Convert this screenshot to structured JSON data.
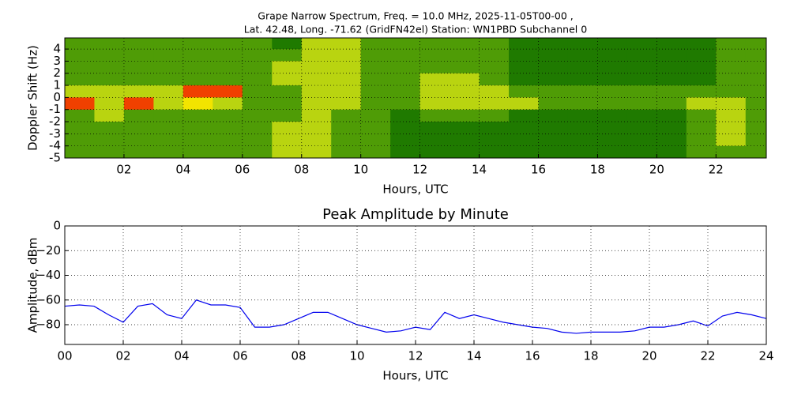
{
  "chart_data": [
    {
      "type": "heatmap",
      "title": [
        "Grape Narrow Spectrum, Freq. = 10.0 MHz, 2025-11-05T00-00 ,",
        "Lat.  42.48, Long. -71.62 (GridFN42el) Station: WN1PBD Subchannel 0"
      ],
      "xlabel": "Hours, UTC",
      "ylabel": "Doppler Shift (Hz)",
      "xlim": [
        0,
        23.7
      ],
      "ylim": [
        -5,
        4.92
      ],
      "xticks": [
        {
          "value": 2,
          "label": "02"
        },
        {
          "value": 4,
          "label": "04"
        },
        {
          "value": 6,
          "label": "06"
        },
        {
          "value": 8,
          "label": "08"
        },
        {
          "value": 10,
          "label": "10"
        },
        {
          "value": 12,
          "label": "12"
        },
        {
          "value": 14,
          "label": "14"
        },
        {
          "value": 16,
          "label": "16"
        },
        {
          "value": 18,
          "label": "18"
        },
        {
          "value": 20,
          "label": "20"
        },
        {
          "value": 22,
          "label": "22"
        }
      ],
      "yticks": [
        4,
        3,
        2,
        1,
        0,
        -1,
        -2,
        -3,
        -4,
        -5
      ],
      "grid": true,
      "colors": [
        "#1f7a00",
        "#4f9c06",
        "#b9d410",
        "#f2e400",
        "#f04000"
      ],
      "x": [
        0.5,
        1.5,
        2.5,
        3.5,
        4.5,
        5.5,
        6.5,
        7.5,
        8.5,
        9.5,
        10.5,
        11.5,
        12.5,
        13.5,
        14.5,
        15.5,
        16.5,
        17.5,
        18.5,
        19.5,
        20.5,
        21.5,
        22.5,
        23.5
      ],
      "y": [
        4.5,
        3.5,
        2.5,
        1.5,
        0.5,
        -0.5,
        -1.5,
        -2.5,
        -3.5,
        -4.5
      ],
      "z": [
        [
          1,
          1,
          1,
          1,
          1,
          1,
          1,
          0,
          2,
          2,
          1,
          1,
          1,
          1,
          1,
          0,
          0,
          0,
          0,
          0,
          0,
          0,
          1,
          1
        ],
        [
          1,
          1,
          1,
          1,
          1,
          1,
          1,
          1,
          2,
          2,
          1,
          1,
          1,
          1,
          1,
          0,
          0,
          0,
          0,
          0,
          0,
          0,
          1,
          1
        ],
        [
          1,
          1,
          1,
          1,
          1,
          1,
          1,
          2,
          2,
          2,
          1,
          1,
          1,
          1,
          1,
          0,
          0,
          0,
          0,
          0,
          0,
          0,
          1,
          1
        ],
        [
          1,
          1,
          1,
          1,
          1,
          1,
          1,
          2,
          2,
          2,
          1,
          1,
          2,
          2,
          1,
          0,
          0,
          0,
          0,
          0,
          0,
          0,
          1,
          1
        ],
        [
          2,
          2,
          2,
          2,
          4,
          4,
          1,
          1,
          2,
          2,
          1,
          1,
          2,
          2,
          2,
          1,
          1,
          1,
          1,
          1,
          1,
          1,
          1,
          1
        ],
        [
          4,
          2,
          4,
          2,
          3,
          2,
          1,
          1,
          2,
          2,
          1,
          1,
          2,
          2,
          2,
          2,
          1,
          1,
          1,
          1,
          1,
          2,
          2,
          1
        ],
        [
          1,
          2,
          1,
          1,
          1,
          1,
          1,
          1,
          2,
          1,
          1,
          0,
          1,
          1,
          1,
          0,
          0,
          0,
          0,
          0,
          0,
          1,
          2,
          1
        ],
        [
          1,
          1,
          1,
          1,
          1,
          1,
          1,
          2,
          2,
          1,
          1,
          0,
          0,
          0,
          0,
          0,
          0,
          0,
          0,
          0,
          0,
          1,
          2,
          1
        ],
        [
          1,
          1,
          1,
          1,
          1,
          1,
          1,
          2,
          2,
          1,
          1,
          0,
          0,
          0,
          0,
          0,
          0,
          0,
          0,
          0,
          0,
          1,
          2,
          1
        ],
        [
          1,
          1,
          1,
          1,
          1,
          1,
          1,
          2,
          2,
          1,
          1,
          0,
          0,
          0,
          0,
          0,
          0,
          0,
          0,
          0,
          0,
          1,
          1,
          1
        ]
      ]
    },
    {
      "type": "line",
      "title": "Peak Amplitude by Minute",
      "xlabel": "Hours, UTC",
      "ylabel": "Amplitude, dBm",
      "xlim": [
        0,
        24
      ],
      "ylim": [
        -96,
        0
      ],
      "xticks": [
        {
          "value": 0,
          "label": "00"
        },
        {
          "value": 2,
          "label": "02"
        },
        {
          "value": 4,
          "label": "04"
        },
        {
          "value": 6,
          "label": "06"
        },
        {
          "value": 8,
          "label": "08"
        },
        {
          "value": 10,
          "label": "10"
        },
        {
          "value": 12,
          "label": "12"
        },
        {
          "value": 14,
          "label": "14"
        },
        {
          "value": 16,
          "label": "16"
        },
        {
          "value": 18,
          "label": "18"
        },
        {
          "value": 20,
          "label": "20"
        },
        {
          "value": 22,
          "label": "22"
        },
        {
          "value": 24,
          "label": "24"
        }
      ],
      "yticks": [
        0,
        {
          "value": -20,
          "label": "−20"
        },
        {
          "value": -40,
          "label": "−40"
        },
        {
          "value": -60,
          "label": "−60"
        },
        {
          "value": -80,
          "label": "−80"
        }
      ],
      "grid": true,
      "x": [
        0,
        0.5,
        1,
        1.5,
        2,
        2.5,
        3,
        3.5,
        4,
        4.5,
        5,
        5.5,
        6,
        6.5,
        7,
        7.5,
        8,
        8.5,
        9,
        9.5,
        10,
        10.5,
        11,
        11.5,
        12,
        12.5,
        13,
        13.5,
        14,
        14.5,
        15,
        15.5,
        16,
        16.5,
        17,
        17.5,
        18,
        18.5,
        19,
        19.5,
        20,
        20.5,
        21,
        21.5,
        22,
        22.5,
        23,
        23.5,
        24
      ],
      "series": [
        {
          "color": "#0000ee",
          "values": [
            -65,
            -64,
            -65,
            -72,
            -78,
            -65,
            -63,
            -72,
            -75,
            -60,
            -64,
            -64,
            -66,
            -82,
            -82,
            -80,
            -75,
            -70,
            -70,
            -75,
            -80,
            -83,
            -86,
            -85,
            -82,
            -84,
            -70,
            -75,
            -72,
            -75,
            -78,
            -80,
            -82,
            -83,
            -86,
            -87,
            -86,
            -86,
            -86,
            -85,
            -82,
            -82,
            -80,
            -77,
            -81,
            -73,
            -70,
            -72,
            -75
          ]
        }
      ]
    }
  ]
}
